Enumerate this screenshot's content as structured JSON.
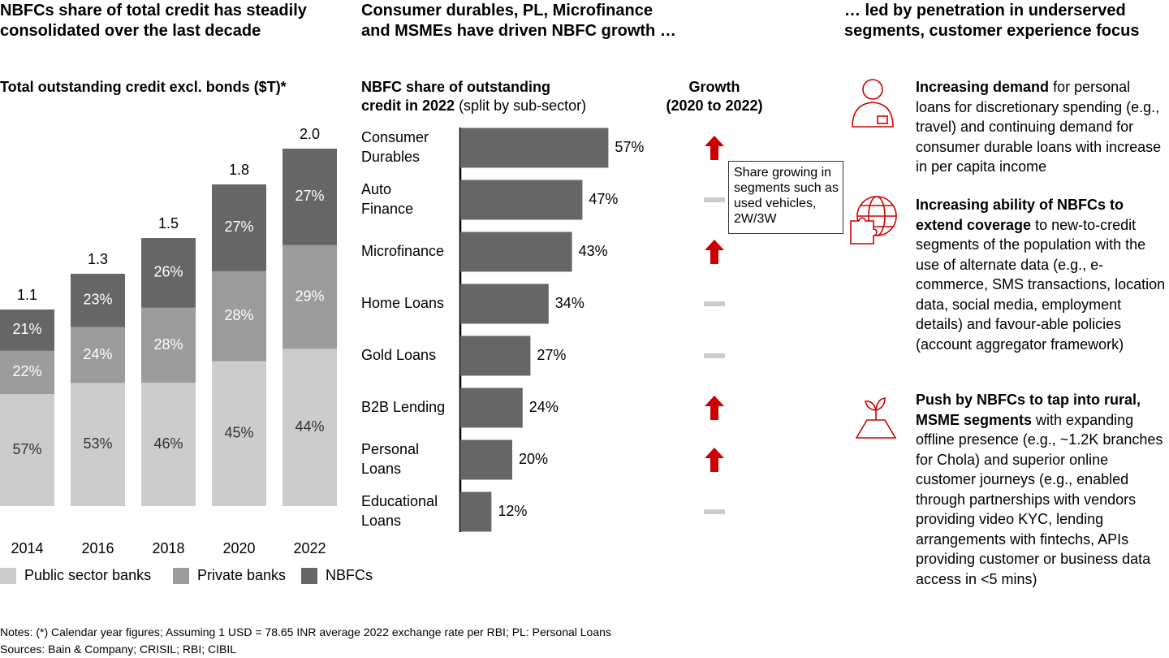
{
  "headings": [
    "NBFCs share of total credit has steadily consolidated over the last decade",
    "Consumer durables, PL, Microfinance and MSMEs have driven NBFC growth …",
    "… led by penetration in underserved segments, customer experience focus"
  ],
  "chart_data": [
    {
      "type": "stacked-bar",
      "title": "Total outstanding credit excl. bonds ($T)*",
      "categories": [
        "2014",
        "2016",
        "2018",
        "2020",
        "2022"
      ],
      "totals": {
        "values": [
          1.1,
          1.3,
          1.5,
          1.8,
          2
        ],
        "value_labels": [
          "1.1",
          "1.3",
          "1.5",
          "1.8",
          "2.0"
        ]
      },
      "series": [
        {
          "name": "Public sector banks",
          "color": "#cccccc",
          "values": [
            57,
            53,
            46,
            45,
            44
          ],
          "value_labels": [
            "57%",
            "53%",
            "46%",
            "45%",
            "44%"
          ]
        },
        {
          "name": "Private banks",
          "color": "#9c9c9c",
          "values": [
            22,
            24,
            28,
            28,
            29
          ],
          "value_labels": [
            "22%",
            "24%",
            "28%",
            "28%",
            "29%"
          ]
        },
        {
          "name": "NBFCs",
          "color": "#666666",
          "values": [
            21,
            23,
            26,
            27,
            27
          ],
          "value_labels": [
            "21%",
            "23%",
            "26%",
            "27%",
            "27%"
          ]
        }
      ]
    },
    {
      "type": "hbar",
      "subtitle_bold": [
        "NBFC share of outstanding",
        "credit in 2022"
      ],
      "subtitle_rest": " (split by sub-sector)",
      "categories": [
        [
          "Consumer",
          "Durables"
        ],
        [
          "Auto",
          "Finance"
        ],
        [
          "Microfinance"
        ],
        [
          "Home Loans"
        ],
        [
          "Gold Loans"
        ],
        [
          "B2B Lending"
        ],
        [
          "Personal",
          "Loans"
        ],
        [
          "Educational",
          "Loans"
        ]
      ],
      "values": [
        57,
        47,
        43,
        34,
        27,
        24,
        20,
        12
      ],
      "value_labels": [
        "57%",
        "47%",
        "43%",
        "34%",
        "27%",
        "24%",
        "20%",
        "12%"
      ],
      "color": "#666666",
      "growth_title": [
        "Growth",
        "(2020 to 2022)"
      ],
      "growth": [
        "up",
        "flat",
        "up",
        "flat",
        "flat",
        "up",
        "up",
        "flat"
      ],
      "annotation": "Share growing in segments such as used vehicles, 2W/3W"
    }
  ],
  "drivers": [
    {
      "bold": "Increasing demand",
      "text": " for personal loans for discretionary spending (e.g., travel) and continuing demand for consumer durable loans with increase in per capita income"
    },
    {
      "bold": "Increasing ability of NBFCs to extend coverage",
      "text": " to new-to-credit segments of the population with the use of alternate data (e.g., e-commerce, SMS transactions, location data, social media, employment details) and favour-able policies (account aggregator framework)"
    },
    {
      "bold": "Push by NBFCs to tap into rural, MSME segments",
      "text": " with expanding offline presence (e.g., ~1.2K branches for Chola) and superior online customer journeys (e.g., enabled through partnerships with vendors providing video KYC, lending arrangements with fintechs, APIs providing customer or business data access in <5 mins)"
    }
  ],
  "notes": "Notes: (*) Calendar year figures; Assuming 1 USD = 78.65 INR average 2022 exchange rate per RBI; PL: Personal Loans",
  "sources": "Sources: Bain & Company; CRISIL; RBI; CIBIL"
}
